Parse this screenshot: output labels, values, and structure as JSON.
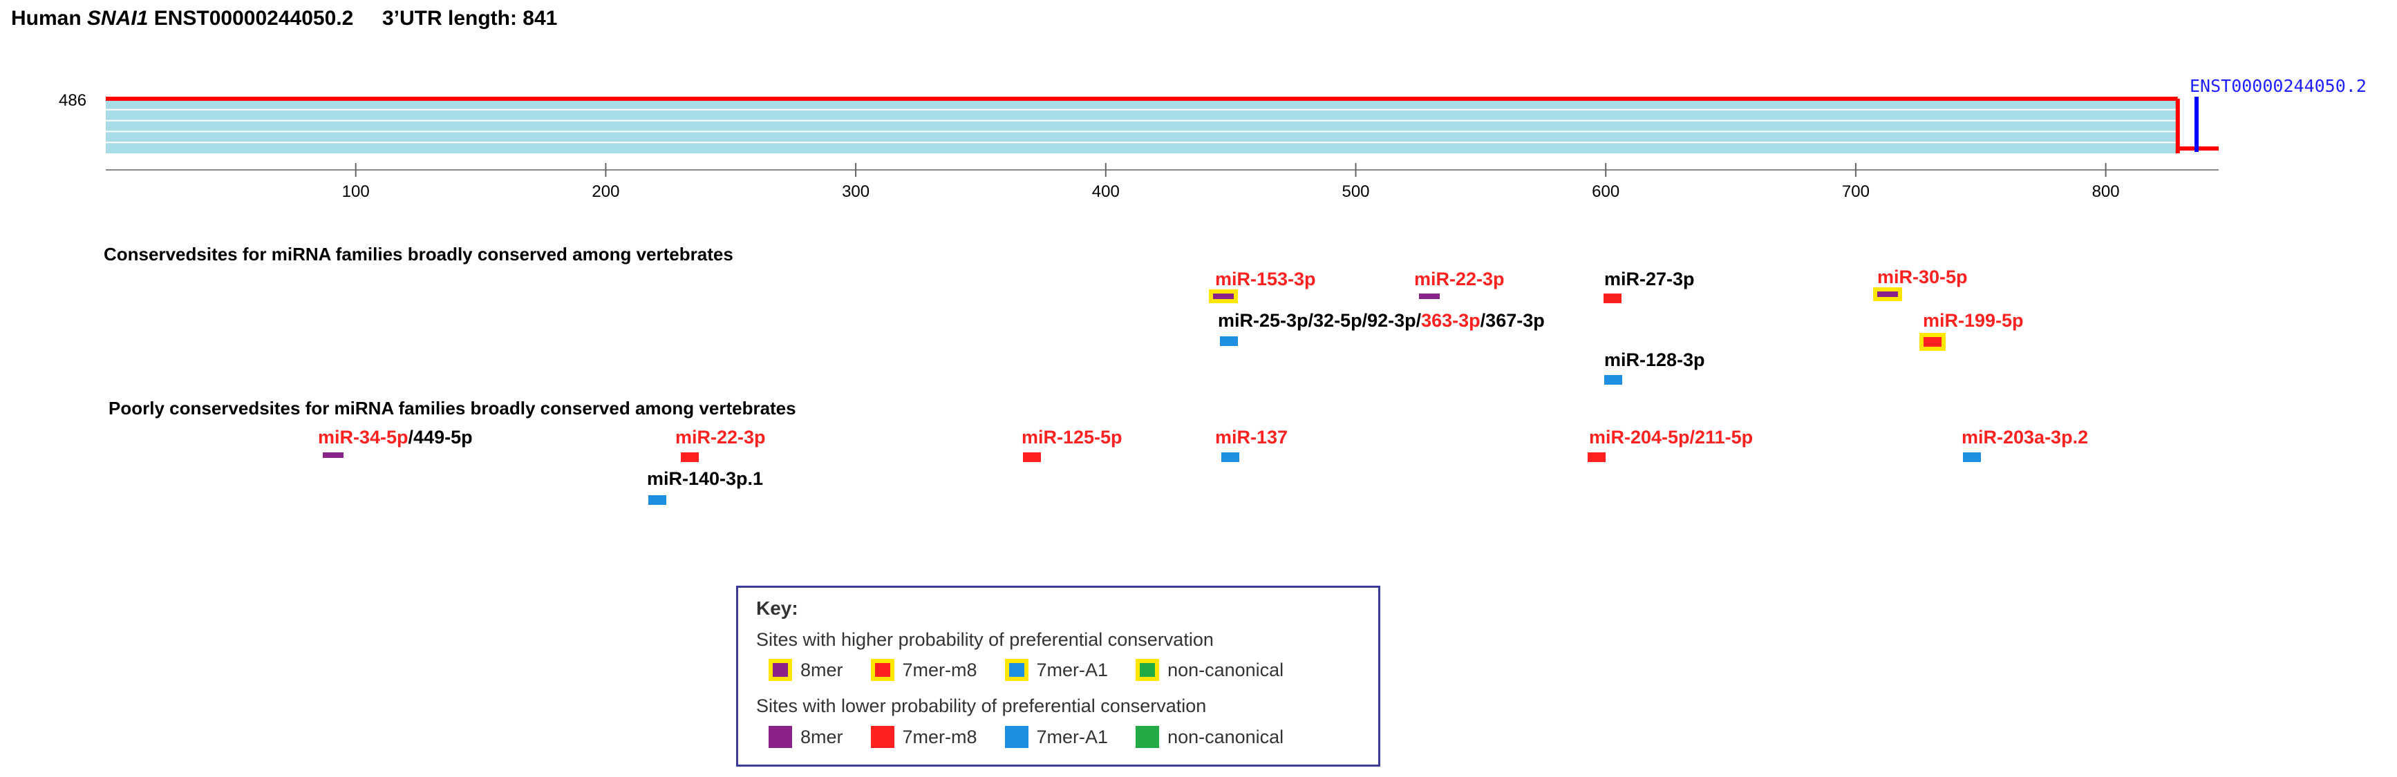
{
  "header": {
    "prefix": "Human ",
    "gene": "SNAI1",
    "transcript": " ENST00000244050.2",
    "utr": "3’UTR length: 841"
  },
  "track": {
    "y_label": "486",
    "transcript_label": "ENST00000244050.2",
    "utr_length": 841,
    "colors": {
      "band": "#a8dce6",
      "outline": "#ff0000",
      "marker": "#0000ff"
    },
    "ticks": [
      "100",
      "200",
      "300",
      "400",
      "500",
      "600",
      "700",
      "800"
    ]
  },
  "sections": {
    "conserved": "Conservedsites for miRNA families broadly conserved among vertebrates",
    "poorly": "Poorly conservedsites for miRNA families broadly conserved among vertebrates"
  },
  "site_colors": {
    "8mer": "#8a2288",
    "7mer-m8": "#ff2020",
    "7mer-A1": "#1e8fe0",
    "non-canonical": "#22aa44",
    "highlight": "#ffe600"
  },
  "conserved_sites": [
    {
      "id": "mir153",
      "parts": [
        {
          "t": "miR-153-3p",
          "c": "red"
        }
      ],
      "position": 446,
      "type": "8mer",
      "highlight": true
    },
    {
      "id": "mir22",
      "parts": [
        {
          "t": "miR-22-3p",
          "c": "red"
        }
      ],
      "position": 526,
      "type": "8mer",
      "highlight": false
    },
    {
      "id": "mir27",
      "parts": [
        {
          "t": "miR-27-3p",
          "c": "black"
        }
      ],
      "position": 600,
      "type": "7mer-m8",
      "highlight": false
    },
    {
      "id": "mir30",
      "parts": [
        {
          "t": "miR-30-5p",
          "c": "red"
        }
      ],
      "position": 712,
      "type": "8mer",
      "highlight": true
    },
    {
      "id": "mir25",
      "parts": [
        {
          "t": "miR-25-3p/32-5p/92-3p/",
          "c": "black"
        },
        {
          "t": "363-3p",
          "c": "red"
        },
        {
          "t": "/367-3p",
          "c": "black"
        }
      ],
      "position": 447,
      "type": "7mer-A1",
      "highlight": false
    },
    {
      "id": "mir199",
      "parts": [
        {
          "t": "miR-199-5p",
          "c": "red"
        }
      ],
      "position": 730,
      "type": "7mer-m8",
      "highlight": true
    },
    {
      "id": "mir128",
      "parts": [
        {
          "t": "miR-128-3p",
          "c": "black"
        }
      ],
      "position": 600,
      "type": "7mer-A1",
      "highlight": false
    }
  ],
  "poorly_conserved_sites": [
    {
      "id": "mir34",
      "parts": [
        {
          "t": "miR-34-5p",
          "c": "red"
        },
        {
          "t": "/449-5p",
          "c": "black"
        }
      ],
      "position": 91,
      "type": "8mer",
      "highlight": false
    },
    {
      "id": "mir22p",
      "parts": [
        {
          "t": "miR-22-3p",
          "c": "red"
        }
      ],
      "position": 233,
      "type": "7mer-m8",
      "highlight": false
    },
    {
      "id": "mir125",
      "parts": [
        {
          "t": "miR-125-5p",
          "c": "red"
        }
      ],
      "position": 369,
      "type": "7mer-m8",
      "highlight": false
    },
    {
      "id": "mir137",
      "parts": [
        {
          "t": "miR-137",
          "c": "red"
        }
      ],
      "position": 448,
      "type": "7mer-A1",
      "highlight": false
    },
    {
      "id": "mir204",
      "parts": [
        {
          "t": "miR-204-5p/211-5p",
          "c": "red"
        }
      ],
      "position": 594,
      "type": "7mer-m8",
      "highlight": false
    },
    {
      "id": "mir140",
      "parts": [
        {
          "t": "miR-140-3p.1",
          "c": "black"
        }
      ],
      "position": 221,
      "type": "7mer-A1",
      "highlight": false
    },
    {
      "id": "mir203",
      "parts": [
        {
          "t": "miR-203a-3p.2",
          "c": "red"
        }
      ],
      "position": 745,
      "type": "7mer-A1",
      "highlight": false
    }
  ],
  "key": {
    "title": "Key:",
    "higher": "Sites with higher probability of preferential conservation",
    "lower": "Sites with lower probability of preferential conservation",
    "items": [
      "8mer",
      "7mer-m8",
      "7mer-A1",
      "non-canonical"
    ]
  }
}
